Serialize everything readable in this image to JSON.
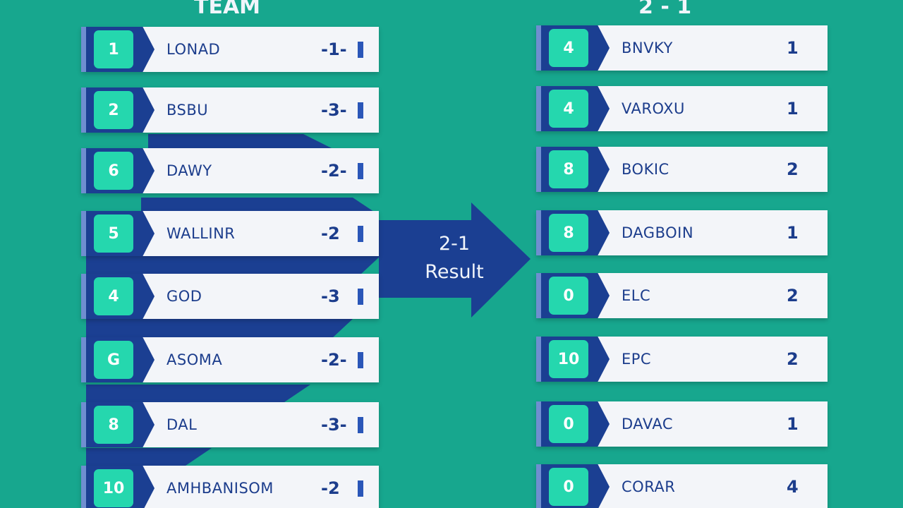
{
  "header": {
    "left_title": "TEAM",
    "right_title": "2 - 1"
  },
  "arrow": {
    "score": "2-1",
    "label": "Result"
  },
  "left_rows": [
    {
      "rank": "1",
      "team": "LONAD",
      "score": "-1-"
    },
    {
      "rank": "2",
      "team": "BSBU",
      "score": "-3-"
    },
    {
      "rank": "6",
      "team": "DAWY",
      "score": "-2-"
    },
    {
      "rank": "5",
      "team": "WALLINR",
      "score": "-2"
    },
    {
      "rank": "4",
      "team": "GOD",
      "score": "-3"
    },
    {
      "rank": "G",
      "team": "ASOMA",
      "score": "-2-"
    },
    {
      "rank": "8",
      "team": "DAL",
      "score": "-3-"
    },
    {
      "rank": "10",
      "team": "AMHBANISOM",
      "score": "-2"
    }
  ],
  "right_rows": [
    {
      "rank": "4",
      "team": "BNVKY",
      "score": "1"
    },
    {
      "rank": "4",
      "team": "VAROXU",
      "score": "1"
    },
    {
      "rank": "8",
      "team": "BOKIC",
      "score": "2"
    },
    {
      "rank": "8",
      "team": "DAGBOIN",
      "score": "1"
    },
    {
      "rank": "0",
      "team": "ELC",
      "score": "2"
    },
    {
      "rank": "10",
      "team": "EPC",
      "score": "2"
    },
    {
      "rank": "0",
      "team": "DAVAC",
      "score": "1"
    },
    {
      "rank": "0",
      "team": "CORAR",
      "score": "4"
    }
  ]
}
